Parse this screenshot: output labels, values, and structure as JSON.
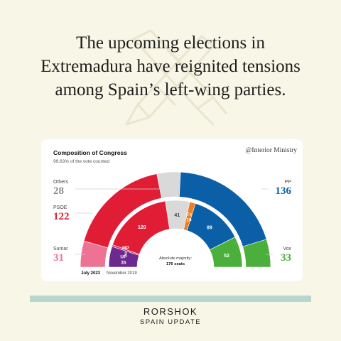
{
  "headline": {
    "line1": "The upcoming elections in",
    "line2": "Extremadura have reignited tensions",
    "line3": "among Spain’s left-wing parties."
  },
  "card": {
    "source": "@Interior Ministry"
  },
  "brand": {
    "name": "RORSHOK",
    "subtitle": "SPAIN UPDATE"
  },
  "colors": {
    "background": "#f8f6e6",
    "divider": "#b7d6d0",
    "PP": "#0a5fa6",
    "PSOE": "#e11d36",
    "Vox": "#4bb03b",
    "Sumar": "#ee7294",
    "Others": "#d9d9d9",
    "UP": "#6c2a8f",
    "MP": "#c0277e",
    "Cs": "#ef7d21"
  },
  "chart_data": {
    "type": "parliament-semicircle",
    "title": "Composition of Congress",
    "subtitle": "99.63% of the vote counted",
    "total_seats": 350,
    "majority_label": "Absolute majority:",
    "majority_value": "176 seats",
    "series": [
      {
        "name": "July 2023",
        "ring": "outer",
        "parties": [
          {
            "party": "Sumar",
            "seats": 31,
            "color": "#ee7294"
          },
          {
            "party": "PSOE",
            "seats": 122,
            "color": "#e11d36"
          },
          {
            "party": "Others",
            "seats": 28,
            "color": "#d9d9d9"
          },
          {
            "party": "PP",
            "seats": 136,
            "color": "#0a5fa6"
          },
          {
            "party": "Vox",
            "seats": 33,
            "color": "#4bb03b"
          }
        ]
      },
      {
        "name": "November 2019",
        "ring": "inner",
        "parties": [
          {
            "party": "UP",
            "seats": 35,
            "color": "#6c2a8f"
          },
          {
            "party": "MP",
            "seats": 3,
            "color": "#c0277e"
          },
          {
            "party": "PSOE",
            "seats": 120,
            "color": "#e11d36"
          },
          {
            "party": "Others",
            "seats": 41,
            "color": "#d9d9d9"
          },
          {
            "party": "Cs",
            "seats": 10,
            "color": "#ef7d21"
          },
          {
            "party": "PP",
            "seats": 89,
            "color": "#0a5fa6"
          },
          {
            "party": "Vox",
            "seats": 52,
            "color": "#4bb03b"
          }
        ]
      }
    ],
    "inner_labels": [
      {
        "label": "UP",
        "value": "35"
      },
      {
        "label": "MP",
        "value": "3"
      },
      {
        "label": "",
        "value": "120"
      },
      {
        "label": "",
        "value": "41"
      },
      {
        "label": "Cs",
        "value": "10"
      },
      {
        "label": "",
        "value": "89"
      },
      {
        "label": "",
        "value": "52"
      }
    ],
    "side_labels": [
      {
        "party": "Others",
        "value": "28",
        "color": "#8c8c8c",
        "side": "left"
      },
      {
        "party": "PSOE",
        "value": "122",
        "color": "#e11d36",
        "side": "left"
      },
      {
        "party": "Sumar",
        "value": "31",
        "color": "#ee7294",
        "side": "left"
      },
      {
        "party": "PP",
        "value": "136",
        "color": "#0a5fa6",
        "side": "right"
      },
      {
        "party": "Vox",
        "value": "33",
        "color": "#4bb03b",
        "side": "right"
      }
    ]
  }
}
